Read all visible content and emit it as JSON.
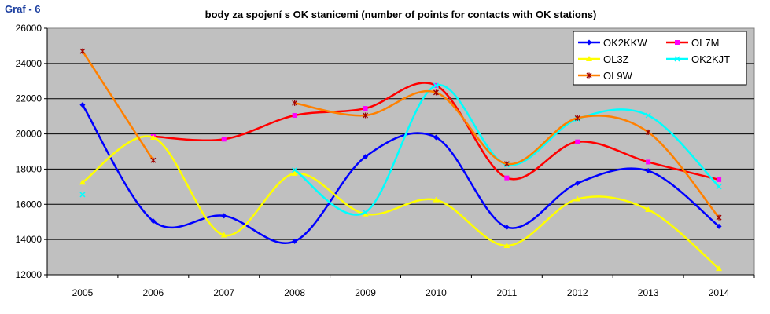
{
  "header": {
    "graf_label": "Graf - 6"
  },
  "chart_data": {
    "type": "line",
    "title": "body za spojení s OK stanicemi (number of points for contacts with OK stations)",
    "xlabel": "",
    "ylabel": "",
    "categories": [
      "2005",
      "2006",
      "2007",
      "2008",
      "2009",
      "2010",
      "2011",
      "2012",
      "2013",
      "2014"
    ],
    "ylim": [
      12000,
      26000
    ],
    "ytick_step": 2000,
    "yticks": [
      "12000",
      "14000",
      "16000",
      "18000",
      "20000",
      "22000",
      "24000",
      "26000"
    ],
    "grid": true,
    "legend_position": "top-right",
    "plot_background": "#c0c0c0",
    "series": [
      {
        "name": "OK2KKW",
        "color": "#0000ff",
        "marker": "diamond",
        "values": [
          21650,
          15050,
          15350,
          13900,
          18700,
          19800,
          14700,
          17200,
          17900,
          14750
        ]
      },
      {
        "name": "OL7M",
        "color": "#ff0000",
        "marker": "square",
        "marker_color": "#ff00ff",
        "values": [
          null,
          19850,
          19700,
          21050,
          21450,
          22750,
          17500,
          19550,
          18400,
          17400
        ]
      },
      {
        "name": "OL3Z",
        "color": "#ffff00",
        "marker": "triangle",
        "values": [
          17250,
          19800,
          14250,
          17750,
          15450,
          16250,
          13650,
          16300,
          15700,
          12350
        ]
      },
      {
        "name": "OK2KJT",
        "color": "#00ffff",
        "marker": "x",
        "values": [
          16550,
          null,
          null,
          17950,
          15550,
          22750,
          18250,
          20850,
          21050,
          17000
        ]
      },
      {
        "name": "OL9W",
        "color": "#ff8000",
        "marker": "star",
        "marker_color": "#a00000",
        "values": [
          24700,
          18500,
          null,
          21750,
          21050,
          22350,
          18300,
          20900,
          20100,
          15250
        ]
      }
    ]
  }
}
